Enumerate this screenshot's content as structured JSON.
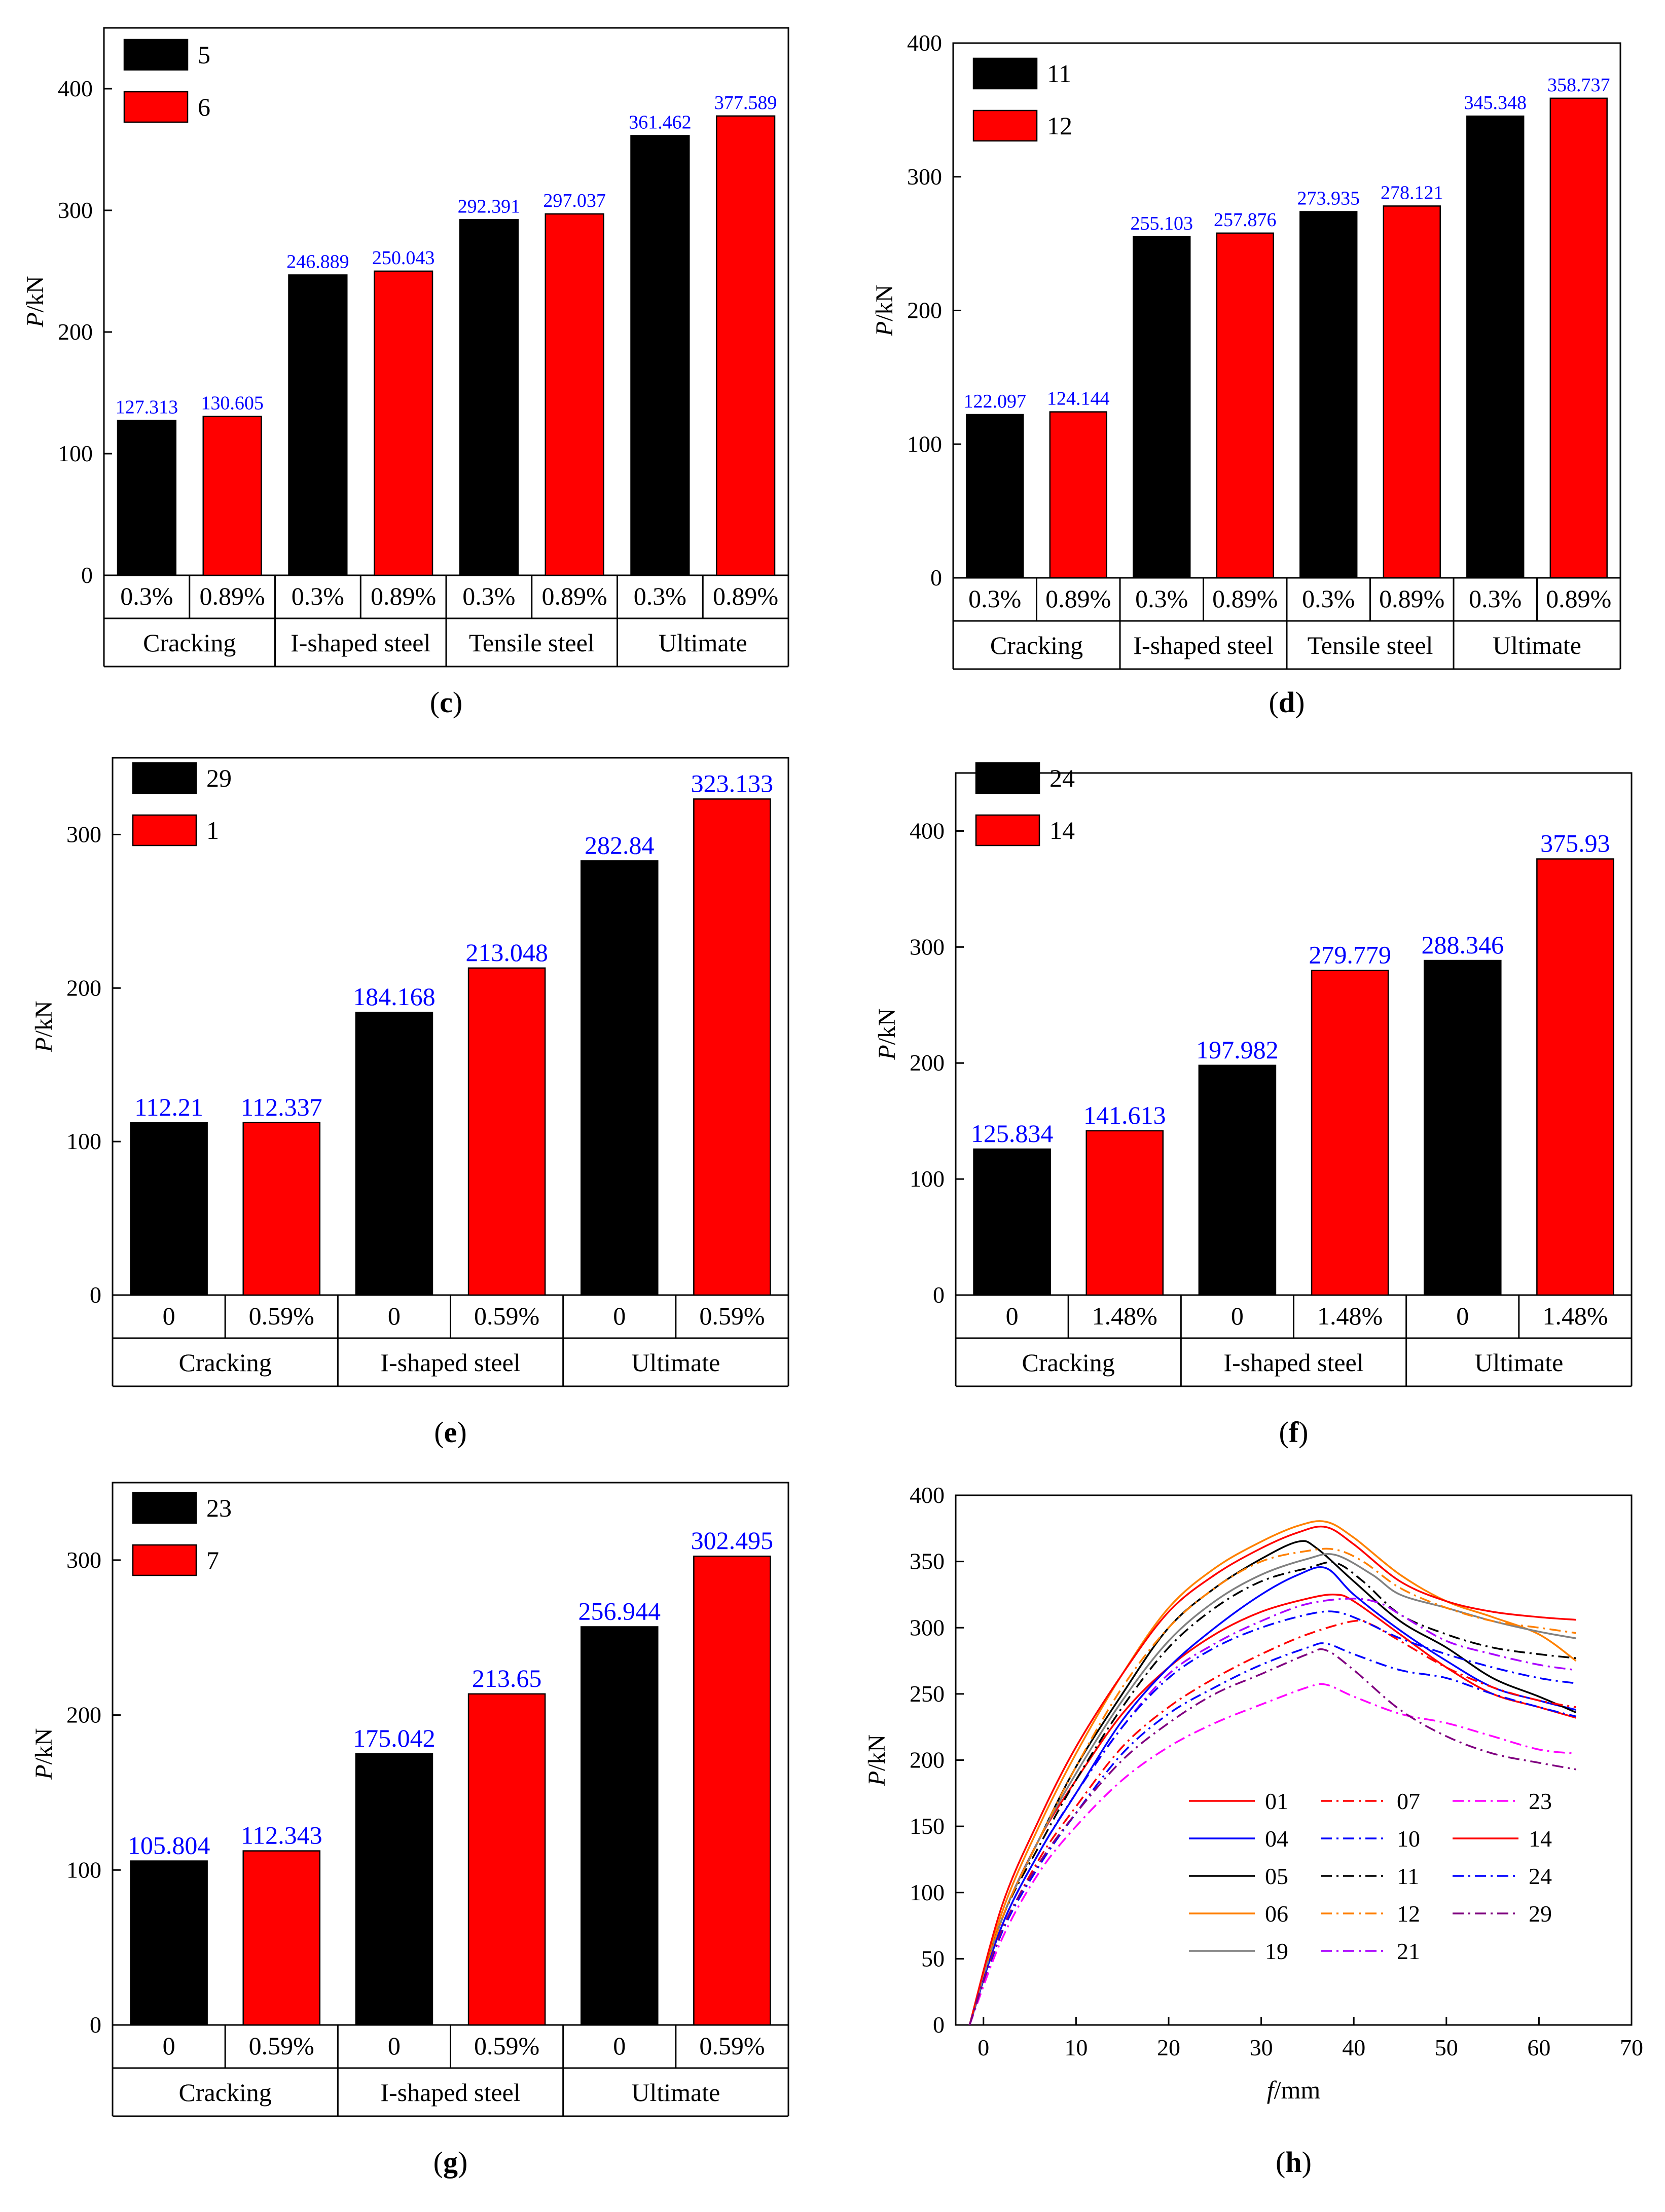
{
  "colors": {
    "bar_a": "#000000",
    "bar_b": "#ff0000",
    "value_label": "#0000ff"
  },
  "chart_data": [
    {
      "id": "c",
      "type": "bar",
      "panel_label": "c",
      "ylabel_italic": "P",
      "ylabel_unit": "/kN",
      "ylim": [
        0,
        450
      ],
      "yticks": [
        0,
        100,
        200,
        300,
        400
      ],
      "legend": [
        "5",
        "6"
      ],
      "percent_labels": [
        "0.3%",
        "0.89%"
      ],
      "groups": [
        "Cracking",
        "I-shaped steel",
        "Tensile steel",
        "Ultimate"
      ],
      "series": [
        {
          "name": "5",
          "values": [
            127.313,
            246.889,
            292.391,
            361.462
          ],
          "labels": [
            "127.313",
            "246.889",
            "292.391",
            "361.462"
          ]
        },
        {
          "name": "6",
          "values": [
            130.605,
            250.043,
            297.037,
            377.589
          ],
          "labels": [
            "130.605",
            "250.043",
            "297.037",
            "377.589"
          ]
        }
      ]
    },
    {
      "id": "d",
      "type": "bar",
      "panel_label": "d",
      "ylabel_italic": "P",
      "ylabel_unit": "/kN",
      "ylim": [
        0,
        400
      ],
      "yticks": [
        0,
        100,
        200,
        300,
        400
      ],
      "legend": [
        "11",
        "12"
      ],
      "percent_labels": [
        "0.3%",
        "0.89%"
      ],
      "groups": [
        "Cracking",
        "I-shaped steel",
        "Tensile steel",
        "Ultimate"
      ],
      "series": [
        {
          "name": "11",
          "values": [
            122.097,
            255.103,
            273.935,
            345.348
          ],
          "labels": [
            "122.097",
            "255.103",
            "273.935",
            "345.348"
          ]
        },
        {
          "name": "12",
          "values": [
            124.144,
            257.876,
            278.121,
            358.737
          ],
          "labels": [
            "124.144",
            "257.876",
            "278.121",
            "358.737"
          ]
        }
      ]
    },
    {
      "id": "e",
      "type": "bar",
      "panel_label": "e",
      "ylabel_italic": "P",
      "ylabel_unit": "/kN",
      "ylim": [
        0,
        350
      ],
      "yticks": [
        0,
        100,
        200,
        300
      ],
      "legend": [
        "29",
        "1"
      ],
      "percent_labels": [
        "0",
        "0.59%"
      ],
      "groups": [
        "Cracking",
        "I-shaped steel",
        "Ultimate"
      ],
      "series": [
        {
          "name": "29",
          "values": [
            112.21,
            184.168,
            282.84
          ],
          "labels": [
            "112.21",
            "184.168",
            "282.84"
          ]
        },
        {
          "name": "1",
          "values": [
            112.337,
            213.048,
            323.133
          ],
          "labels": [
            "112.337",
            "213.048",
            "323.133"
          ]
        }
      ]
    },
    {
      "id": "f",
      "type": "bar",
      "panel_label": "f",
      "ylabel_italic": "P",
      "ylabel_unit": "/kN",
      "ylim": [
        0,
        450
      ],
      "yticks": [
        0,
        100,
        200,
        300,
        400
      ],
      "legend": [
        "24",
        "14"
      ],
      "percent_labels": [
        "0",
        "1.48%"
      ],
      "groups": [
        "Cracking",
        "I-shaped steel",
        "Ultimate"
      ],
      "series": [
        {
          "name": "24",
          "values": [
            125.834,
            197.982,
            288.346
          ],
          "labels": [
            "125.834",
            "197.982",
            "288.346"
          ]
        },
        {
          "name": "14",
          "values": [
            141.613,
            279.779,
            375.93
          ],
          "labels": [
            "141.613",
            "279.779",
            "375.93"
          ]
        }
      ]
    },
    {
      "id": "g",
      "type": "bar",
      "panel_label": "g",
      "ylabel_italic": "P",
      "ylabel_unit": "/kN",
      "ylim": [
        0,
        350
      ],
      "yticks": [
        0,
        100,
        200,
        300
      ],
      "legend": [
        "23",
        "7"
      ],
      "percent_labels": [
        "0",
        "0.59%"
      ],
      "groups": [
        "Cracking",
        "I-shaped steel",
        "Ultimate"
      ],
      "series": [
        {
          "name": "23",
          "values": [
            105.804,
            175.042,
            256.944
          ],
          "labels": [
            "105.804",
            "175.042",
            "256.944"
          ]
        },
        {
          "name": "7",
          "values": [
            112.343,
            213.65,
            302.495
          ],
          "labels": [
            "112.343",
            "213.65",
            "302.495"
          ]
        }
      ]
    },
    {
      "id": "h",
      "type": "line",
      "panel_label": "h",
      "ylabel_italic": "P",
      "ylabel_unit": "/kN",
      "xlabel_italic": "f",
      "xlabel_unit": "/mm",
      "xlim": [
        -3,
        70
      ],
      "ylim": [
        0,
        400
      ],
      "xticks": [
        0,
        10,
        20,
        30,
        40,
        50,
        60,
        70
      ],
      "yticks": [
        0,
        50,
        100,
        150,
        200,
        250,
        300,
        350,
        400
      ],
      "legend_order": [
        "01",
        "07",
        "23",
        "04",
        "10",
        "14",
        "05",
        "11",
        "24",
        "06",
        "12",
        "29",
        "19",
        "21"
      ],
      "series": [
        {
          "name": "01",
          "color": "#ff0000",
          "dash": "solid",
          "x": [
            -1.5,
            2,
            6,
            10,
            15,
            20,
            25,
            30,
            35,
            38,
            40,
            45,
            50,
            55,
            60,
            64
          ],
          "y": [
            0,
            80,
            140,
            185,
            235,
            270,
            295,
            312,
            322,
            325,
            320,
            295,
            270,
            250,
            240,
            232
          ]
        },
        {
          "name": "04",
          "color": "#0000ff",
          "dash": "solid",
          "x": [
            -1.5,
            2,
            6,
            10,
            15,
            20,
            25,
            30,
            34,
            37,
            40,
            45,
            50,
            55,
            60,
            64
          ],
          "y": [
            0,
            75,
            130,
            175,
            230,
            270,
            300,
            325,
            340,
            345,
            325,
            298,
            275,
            255,
            245,
            238
          ]
        },
        {
          "name": "05",
          "color": "#000000",
          "dash": "solid",
          "x": [
            -1.5,
            2,
            6,
            10,
            15,
            20,
            25,
            30,
            34,
            36,
            40,
            45,
            50,
            55,
            60,
            64
          ],
          "y": [
            0,
            80,
            140,
            195,
            250,
            300,
            330,
            352,
            365,
            360,
            335,
            305,
            285,
            262,
            248,
            236
          ]
        },
        {
          "name": "06",
          "color": "#ff8000",
          "dash": "solid",
          "x": [
            -1.5,
            2,
            6,
            10,
            15,
            20,
            25,
            30,
            34,
            37,
            40,
            45,
            50,
            55,
            60,
            64
          ],
          "y": [
            0,
            85,
            150,
            205,
            265,
            315,
            345,
            365,
            377,
            380,
            368,
            340,
            320,
            308,
            295,
            275
          ]
        },
        {
          "name": "19",
          "color": "#808080",
          "dash": "solid",
          "x": [
            -1.5,
            2,
            6,
            10,
            15,
            20,
            25,
            30,
            35,
            38,
            42,
            45,
            50,
            55,
            60,
            64
          ],
          "y": [
            0,
            80,
            140,
            190,
            245,
            290,
            320,
            340,
            352,
            355,
            340,
            325,
            315,
            305,
            297,
            292
          ]
        },
        {
          "name": "07",
          "color": "#ff0000",
          "dash": "dashdot",
          "x": [
            -1.5,
            2,
            6,
            10,
            15,
            20,
            25,
            30,
            35,
            40,
            42,
            45,
            50,
            55,
            60,
            64
          ],
          "y": [
            0,
            70,
            125,
            165,
            210,
            240,
            262,
            280,
            295,
            305,
            302,
            290,
            270,
            255,
            245,
            240
          ]
        },
        {
          "name": "10",
          "color": "#0000ff",
          "dash": "dashdot",
          "x": [
            -1.5,
            2,
            6,
            10,
            15,
            20,
            25,
            30,
            35,
            37,
            40,
            45,
            50,
            55,
            60,
            64
          ],
          "y": [
            0,
            70,
            120,
            160,
            205,
            235,
            255,
            272,
            285,
            288,
            280,
            268,
            262,
            250,
            240,
            233
          ]
        },
        {
          "name": "11",
          "color": "#000000",
          "dash": "dashdot",
          "x": [
            -1.5,
            2,
            6,
            10,
            15,
            20,
            25,
            30,
            35,
            38,
            41,
            45,
            50,
            55,
            60,
            64
          ],
          "y": [
            0,
            80,
            135,
            185,
            240,
            285,
            315,
            335,
            345,
            349,
            335,
            310,
            295,
            285,
            280,
            277
          ]
        },
        {
          "name": "12",
          "color": "#ff8000",
          "dash": "dashdot",
          "x": [
            -1.5,
            2,
            6,
            10,
            15,
            20,
            25,
            30,
            35,
            38,
            41,
            45,
            50,
            55,
            60,
            64
          ],
          "y": [
            0,
            80,
            140,
            195,
            255,
            300,
            330,
            350,
            358,
            359,
            350,
            330,
            315,
            305,
            300,
            296
          ]
        },
        {
          "name": "21",
          "color": "#aa00ff",
          "dash": "dashdot",
          "x": [
            -1.5,
            2,
            6,
            10,
            15,
            20,
            25,
            30,
            35,
            40,
            43,
            45,
            50,
            55,
            60,
            64
          ],
          "y": [
            0,
            75,
            130,
            175,
            225,
            265,
            288,
            305,
            318,
            322,
            318,
            310,
            290,
            280,
            272,
            268
          ]
        },
        {
          "name": "23",
          "color": "#ff00ff",
          "dash": "dashdot",
          "x": [
            -1.5,
            2,
            6,
            10,
            15,
            20,
            25,
            30,
            35,
            37,
            40,
            45,
            50,
            55,
            60,
            64
          ],
          "y": [
            0,
            65,
            115,
            150,
            185,
            210,
            228,
            242,
            255,
            257,
            248,
            235,
            228,
            218,
            208,
            205
          ]
        },
        {
          "name": "14",
          "color": "#ff0000",
          "dash": "solid",
          "x": [
            -1.5,
            2,
            6,
            10,
            15,
            20,
            25,
            30,
            34,
            37,
            40,
            45,
            50,
            55,
            60,
            64
          ],
          "y": [
            0,
            90,
            155,
            210,
            265,
            312,
            340,
            360,
            372,
            376,
            363,
            335,
            320,
            312,
            308,
            306
          ]
        },
        {
          "name": "24",
          "color": "#0000ff",
          "dash": "dashdot",
          "x": [
            -1.5,
            2,
            6,
            10,
            15,
            20,
            25,
            30,
            35,
            38,
            41,
            45,
            50,
            55,
            60,
            64
          ],
          "y": [
            0,
            75,
            130,
            175,
            225,
            262,
            285,
            300,
            310,
            312,
            305,
            292,
            280,
            270,
            262,
            258
          ]
        },
        {
          "name": "29",
          "color": "#800080",
          "dash": "dashdot",
          "x": [
            -1.5,
            2,
            6,
            10,
            15,
            20,
            25,
            30,
            35,
            37,
            40,
            45,
            50,
            55,
            60,
            64
          ],
          "y": [
            0,
            72,
            122,
            160,
            200,
            228,
            250,
            265,
            280,
            283,
            268,
            238,
            218,
            205,
            198,
            193
          ]
        }
      ]
    }
  ]
}
